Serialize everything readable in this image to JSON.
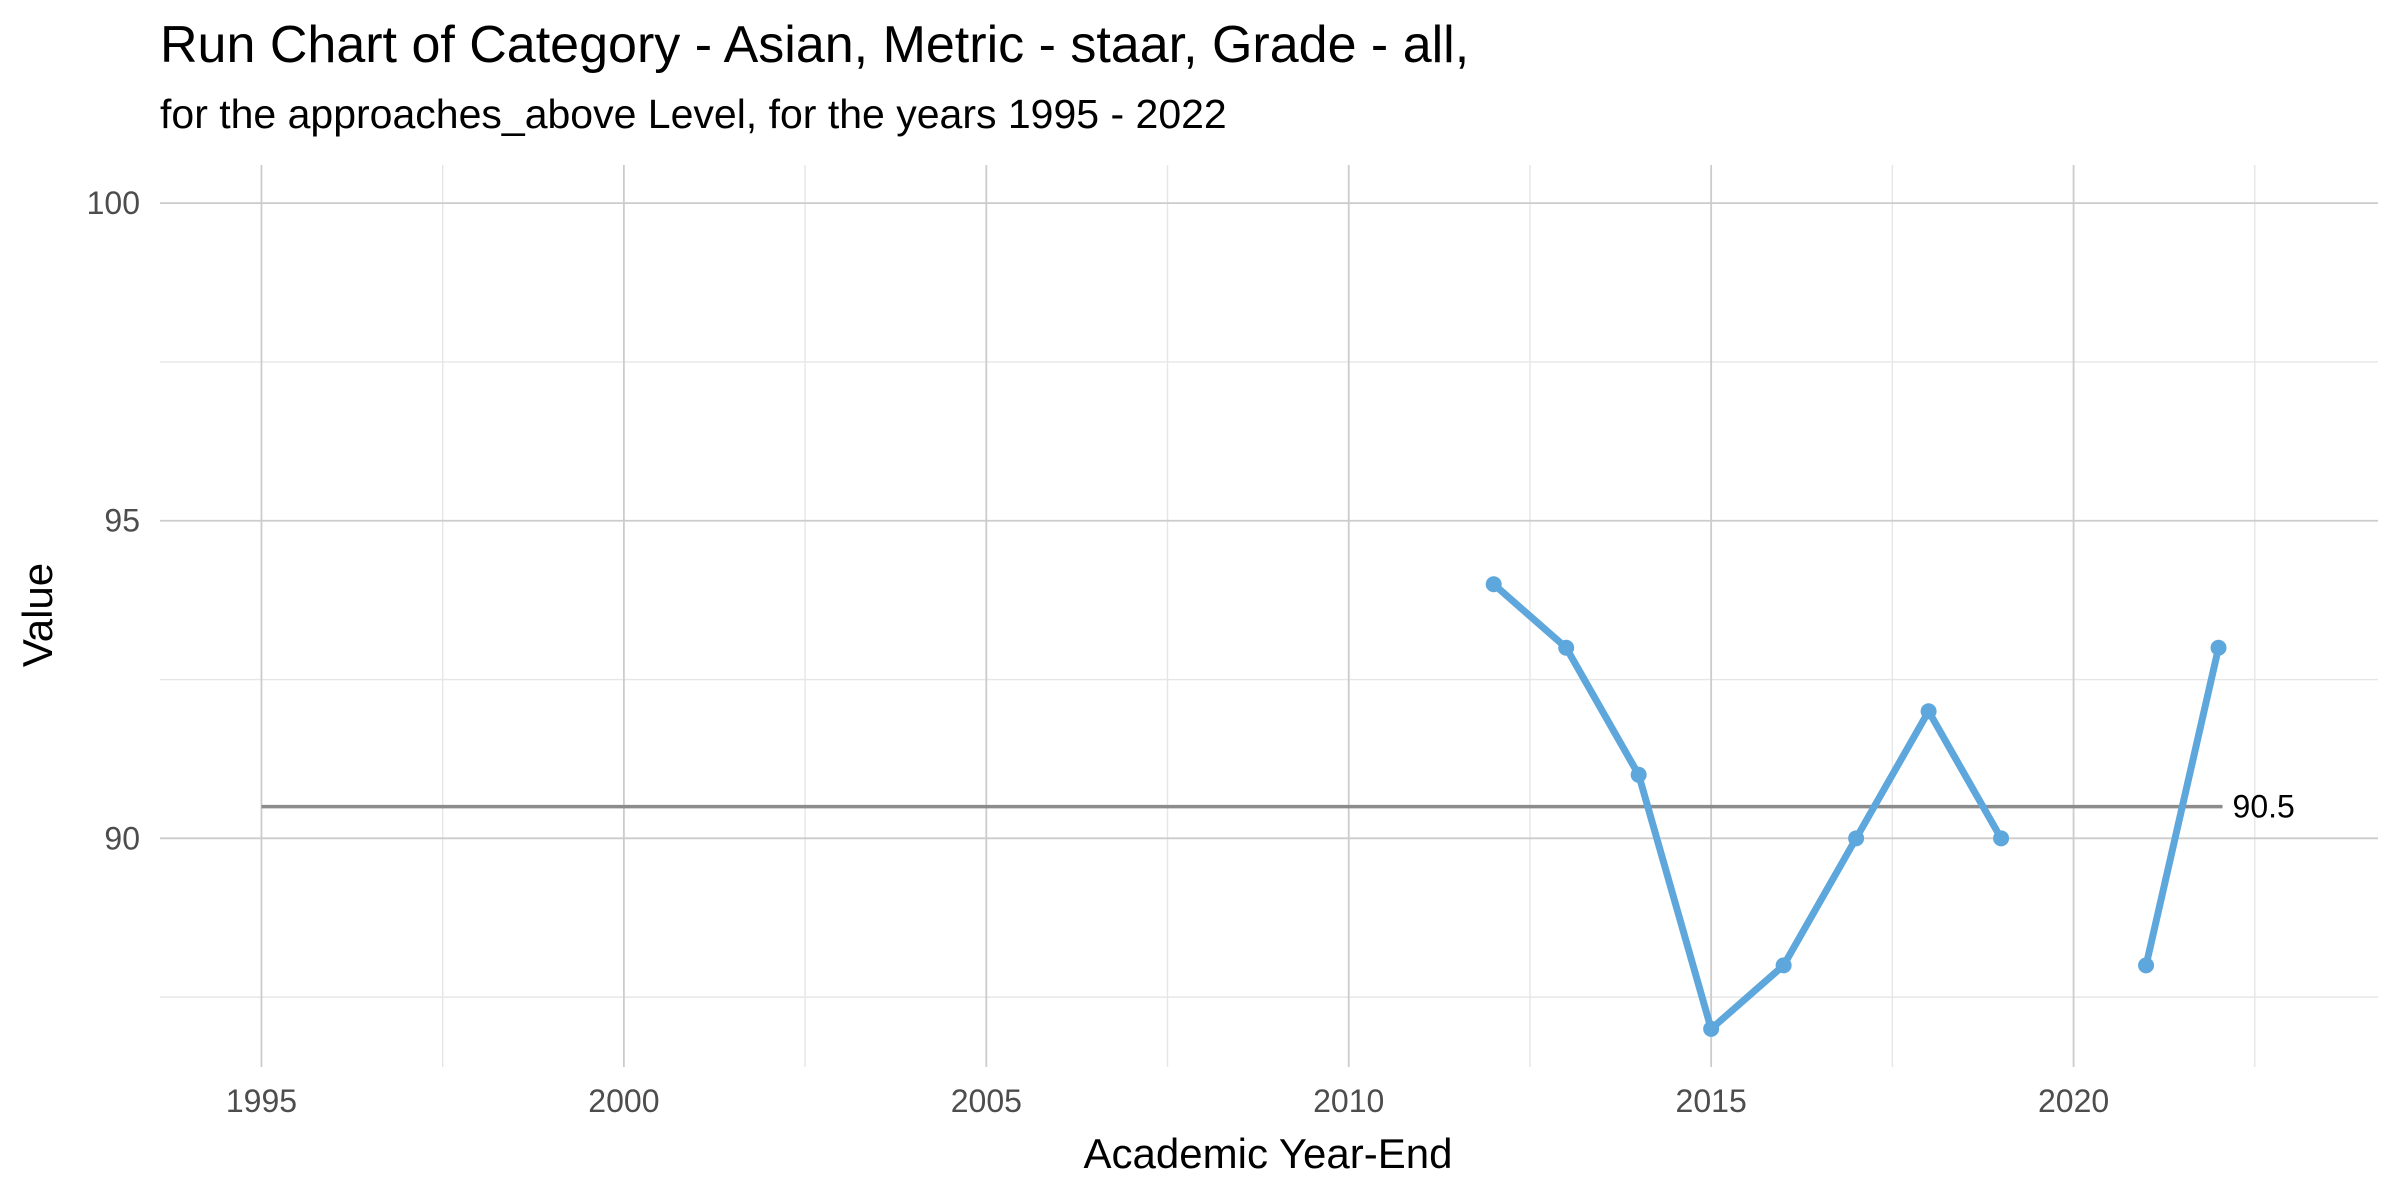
{
  "chart_data": {
    "type": "line",
    "title": "Run Chart of Category - Asian, Metric - staar, Grade - all,",
    "subtitle": "for the approaches_above Level, for the years 1995 - 2022",
    "xlabel": "Academic Year-End",
    "ylabel": "Value",
    "xlim": [
      1993.6,
      2024.2
    ],
    "ylim": [
      86.4,
      100.6
    ],
    "x_major_ticks": [
      1995,
      2000,
      2005,
      2010,
      2015,
      2020
    ],
    "x_minor_ticks": [
      1997.5,
      2002.5,
      2007.5,
      2012.5,
      2017.5,
      2022.5
    ],
    "y_major_ticks": [
      90,
      95,
      100
    ],
    "y_minor_ticks": [
      87.5,
      92.5,
      97.5
    ],
    "x_tick_labels": [
      "1995",
      "2000",
      "2005",
      "2010",
      "2015",
      "2020"
    ],
    "y_tick_labels": [
      "90",
      "95",
      "100"
    ],
    "grid": true,
    "legend": "none",
    "series": [
      {
        "color": "#5ea7dc",
        "segments": [
          {
            "x": [
              2012,
              2013,
              2014,
              2015,
              2016,
              2017,
              2018,
              2019
            ],
            "y": [
              94,
              93,
              91,
              87,
              88,
              90,
              92,
              90
            ]
          },
          {
            "x": [
              2021,
              2022
            ],
            "y": [
              88,
              93
            ]
          }
        ]
      }
    ],
    "reference_line": {
      "value": 90.5,
      "label": "90.5",
      "x_start": 1995,
      "x_end": 2022,
      "color": "#8c8c8c"
    },
    "colors": {
      "background": "#ffffff",
      "grid_major": "#cccccc",
      "grid_minor": "#e6e6e6",
      "series": "#5ea7dc",
      "reference": "#8c8c8c",
      "tick_text": "#4d4d4d"
    }
  }
}
